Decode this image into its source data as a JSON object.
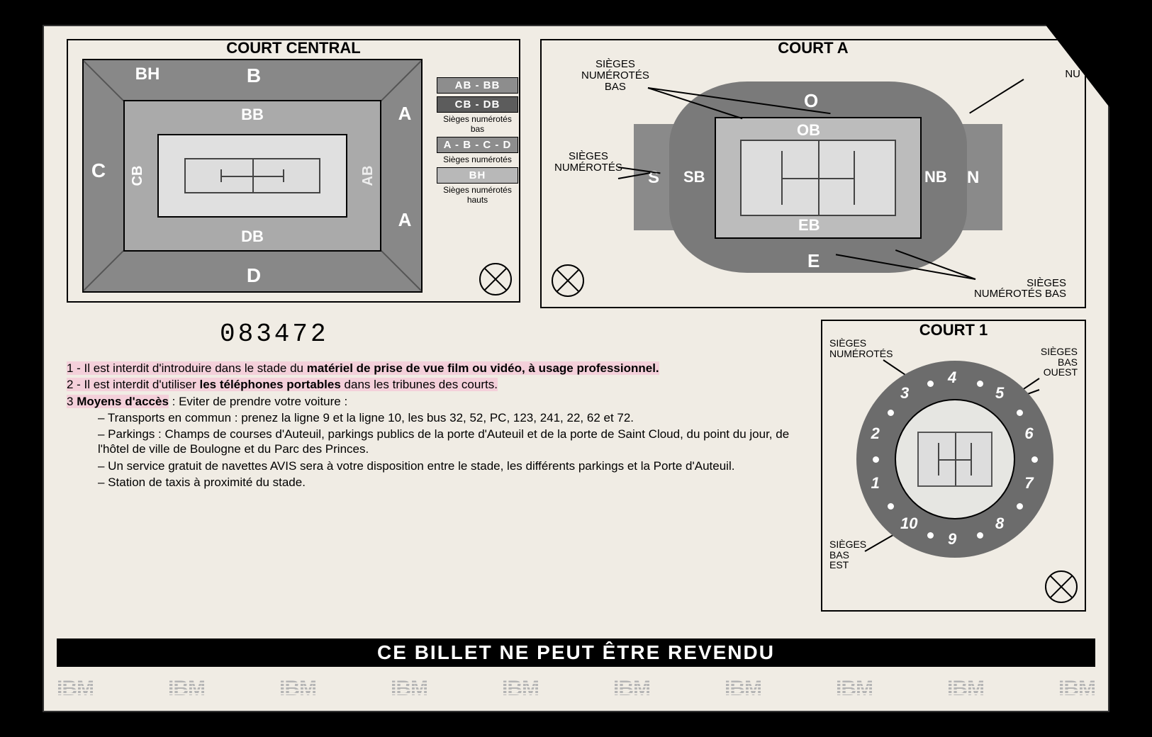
{
  "colors": {
    "background": "#000000",
    "paper": "#f0ece4",
    "dark_grey": "#6c6c6c",
    "mid_grey": "#888888",
    "light_grey": "#bcbcbc",
    "court_fill": "#dddddd",
    "pink": "#f4d0da",
    "legend_dark": "#5c5c5c",
    "legend_mid": "#8d8d8d",
    "legend_light": "#b8b8b8"
  },
  "serial_number": "083472",
  "court_central": {
    "title": "COURT CENTRAL",
    "sections": {
      "BH": "BH",
      "B": "B",
      "A": "A",
      "C": "C",
      "D": "D",
      "BB": "BB",
      "DB": "DB",
      "CB": "CB",
      "AB": "AB"
    },
    "legend": [
      {
        "label": "AB - BB",
        "bg": "#8d8d8d"
      },
      {
        "label": "CB - DB",
        "bg": "#5c5c5c"
      },
      {
        "caption": "Sièges numérotés bas"
      },
      {
        "label": "A - B - C - D",
        "bg": "#8d8d8d"
      },
      {
        "caption": "Sièges numérotés"
      },
      {
        "label": "BH",
        "bg": "#b8b8b8"
      },
      {
        "caption": "Sièges numérotés hauts"
      }
    ]
  },
  "court_a": {
    "title": "COURT A",
    "labels": {
      "top_left": "SIÈGES\nNUMÉROTÉS\nBAS",
      "top_right": "NU",
      "mid_left": "SIÈGES\nNUMÉROTÉS",
      "bottom_right": "SIÈGES\nNUMÉROTÉS BAS"
    },
    "sections": {
      "O": "O",
      "OB": "OB",
      "S": "S",
      "SB": "SB",
      "NB": "NB",
      "N": "N",
      "EB": "EB",
      "E": "E"
    }
  },
  "court_1": {
    "title": "COURT 1",
    "labels": {
      "top_left": "SIÈGES\nNUMÉROTÉS",
      "top_right": "SIÈGES\nBAS\nOUEST",
      "bottom_left": "SIÈGES\nBAS\nEST"
    },
    "sector_numbers": [
      "1",
      "2",
      "3",
      "4",
      "5",
      "6",
      "7",
      "8",
      "9",
      "10"
    ],
    "sector_angles_deg": [
      -108,
      -72,
      -36,
      0,
      36,
      72,
      108,
      144,
      180,
      216
    ]
  },
  "rules": {
    "line1_pre": "1 - Il est interdit d'introduire dans le stade du ",
    "line1_bold": "matériel de prise de vue film ou vidéo, à usage professionnel.",
    "line2_pre": "2 - Il est interdit d'utiliser ",
    "line2_bold": "les téléphones portables",
    "line2_post": " dans les tribunes des courts.",
    "line3_pre": "3   ",
    "line3_bold": "Moyens d'accès",
    "line3_post": " : Eviter de prendre votre voiture :",
    "bullets": [
      "– Transports en commun : prenez la ligne 9 et la ligne 10, les bus 32, 52, PC, 123, 241, 22, 62 et 72.",
      "– Parkings : Champs de courses d'Auteuil, parkings publics de la porte d'Auteuil et de la porte de Saint Cloud, du point du jour, de l'hôtel de ville de Boulogne et du Parc des Princes.",
      "– Un service gratuit de navettes AVIS sera à votre disposition entre le stade, les différents parkings et la Porte d'Auteuil.",
      "– Station de taxis à proximité du stade."
    ]
  },
  "footer": {
    "banner": "CE BILLET NE PEUT ÊTRE REVENDU",
    "sponsor": "IBM",
    "sponsor_count": 10
  }
}
